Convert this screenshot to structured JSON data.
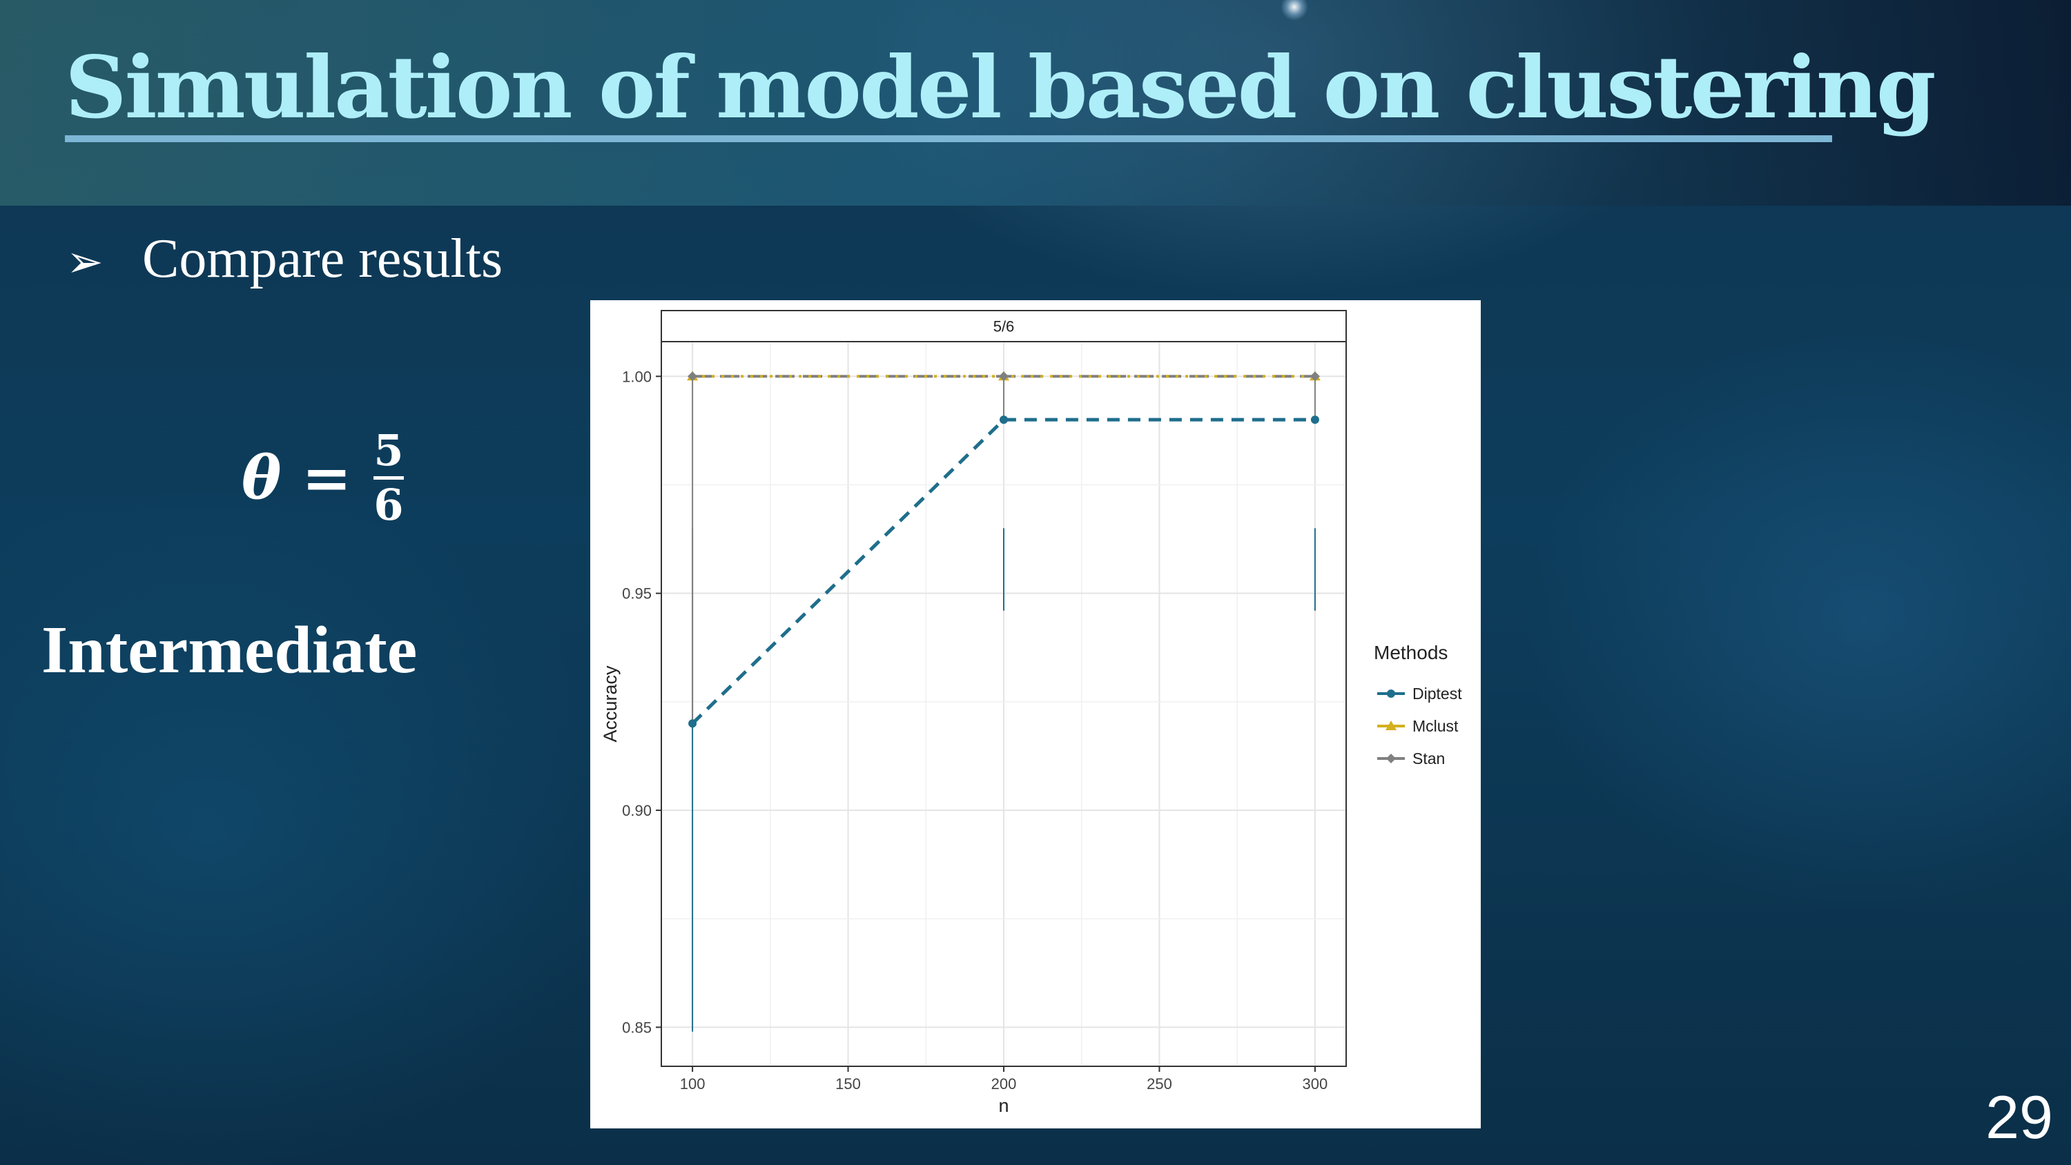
{
  "slide": {
    "title": "Simulation of model based on clustering",
    "bullet": "Compare results",
    "bullet_icon": "arrowhead-bullet-icon",
    "formula": {
      "lhs": "θ =",
      "numerator": "5",
      "denominator": "6"
    },
    "subtitle": "Intermediate",
    "page_number": "29"
  },
  "chart_data": {
    "type": "line",
    "panel_label": "5/6",
    "xlabel": "n",
    "ylabel": "Accuracy",
    "x": [
      100,
      200,
      300
    ],
    "xlim": [
      90,
      310
    ],
    "ylim": [
      0.841,
      1.008
    ],
    "xticks": [
      100,
      150,
      200,
      250,
      300
    ],
    "yticks": [
      0.85,
      0.9,
      0.95,
      1.0
    ],
    "ytick_labels": [
      "0.85",
      "0.90",
      "0.95",
      "1.00"
    ],
    "grid": true,
    "legend": {
      "title": "Methods",
      "position": "right"
    },
    "series": [
      {
        "name": "Diptest",
        "values": [
          0.92,
          0.99,
          0.99
        ],
        "color": "#1f6e8c",
        "dash": "18,12",
        "marker": "circle",
        "error_low": [
          0.849,
          0.946,
          0.946
        ],
        "error_high": [
          0.965,
          0.965,
          0.965
        ]
      },
      {
        "name": "Mclust",
        "values": [
          1.0,
          1.0,
          1.0
        ],
        "color": "#d4b020",
        "dash": "4,10",
        "marker": "triangle"
      },
      {
        "name": "Stan",
        "values": [
          1.0,
          1.0,
          1.0
        ],
        "color": "#808080",
        "dash": "28,12",
        "marker": "diamond",
        "error_low": [
          0.92,
          0.99,
          0.99
        ],
        "error_high": [
          1.0,
          1.0,
          1.0
        ]
      }
    ]
  }
}
